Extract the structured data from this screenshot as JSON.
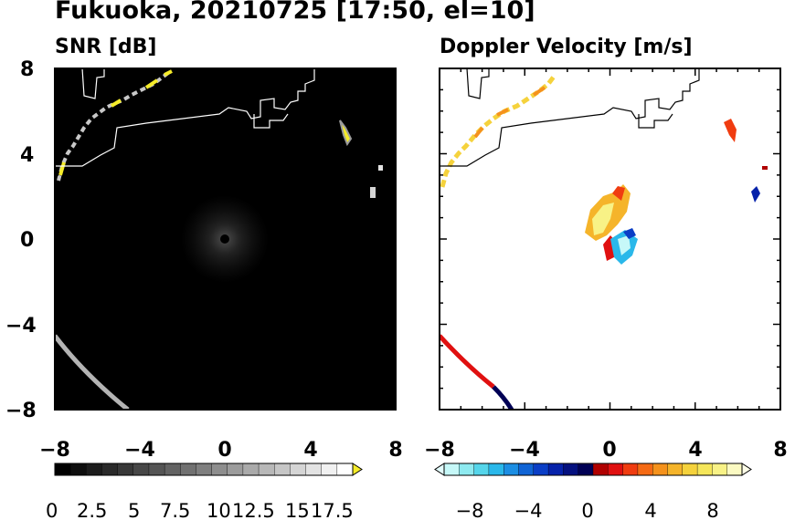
{
  "title": "Fukuoka, 20210725 [17:50, el=10]",
  "chart_data": [
    {
      "type": "heatmap",
      "title": "SNR [dB]",
      "xlim": [
        -8,
        8
      ],
      "ylim": [
        -8,
        8
      ],
      "x_ticks": [
        "−8",
        "−4",
        "0",
        "4",
        "8"
      ],
      "y_ticks": [
        "8",
        "4",
        "0",
        "−4",
        "−8"
      ],
      "x_tick_values": [
        -8,
        -4,
        0,
        4,
        8
      ],
      "y_tick_values": [
        8,
        4,
        0,
        -4,
        -8
      ],
      "colorbar": {
        "range": [
          0,
          18.5
        ],
        "extend": "max",
        "tick_labels": [
          "0",
          "2.5",
          "5",
          "7.5",
          "10",
          "12.5",
          "15",
          "17.5"
        ],
        "tick_values": [
          0,
          2.5,
          5,
          7.5,
          10,
          12.5,
          15,
          17.5
        ],
        "colors": [
          "#000000",
          "#0e0e0e",
          "#1c1c1c",
          "#2a2a2a",
          "#383838",
          "#474747",
          "#555555",
          "#636363",
          "#717171",
          "#7f7f7f",
          "#8e8e8e",
          "#9c9c9c",
          "#aaaaaa",
          "#b8b8b8",
          "#c6c6c6",
          "#d5d5d5",
          "#e3e3e3",
          "#f1f1f1",
          "#ffffff"
        ],
        "over_color": "#f5ec2a"
      },
      "background": "#000000"
    },
    {
      "type": "heatmap",
      "title": "Doppler Velocity [m/s]",
      "xlim": [
        -8,
        8
      ],
      "ylim": [
        -8,
        8
      ],
      "x_ticks": [
        "−8",
        "−4",
        "0",
        "4",
        "8"
      ],
      "y_ticks": [
        "8",
        "4",
        "0",
        "−4",
        "−8"
      ],
      "x_tick_values": [
        -8,
        -4,
        0,
        4,
        8
      ],
      "y_tick_values": [
        8,
        4,
        0,
        -4,
        -8
      ],
      "colorbar": {
        "range": [
          -10,
          10
        ],
        "extend": "both",
        "tick_labels": [
          "−8",
          "−4",
          "0",
          "4",
          "8"
        ],
        "tick_values": [
          -8,
          -4,
          0,
          4,
          8
        ],
        "colors": [
          "#c6f8f8",
          "#8eeaf0",
          "#55d5ea",
          "#2ab8ea",
          "#1c8ee3",
          "#1064d5",
          "#0a3ec6",
          "#0622aa",
          "#04107f",
          "#000055",
          "#b00000",
          "#e01010",
          "#f03c10",
          "#f56a14",
          "#f5921c",
          "#f5b42a",
          "#f5d23c",
          "#f5e65a",
          "#f8f286",
          "#fbfac2"
        ],
        "under_color": "#e3fcfc",
        "over_color": "#fdfde8"
      },
      "background": "#ffffff"
    }
  ]
}
